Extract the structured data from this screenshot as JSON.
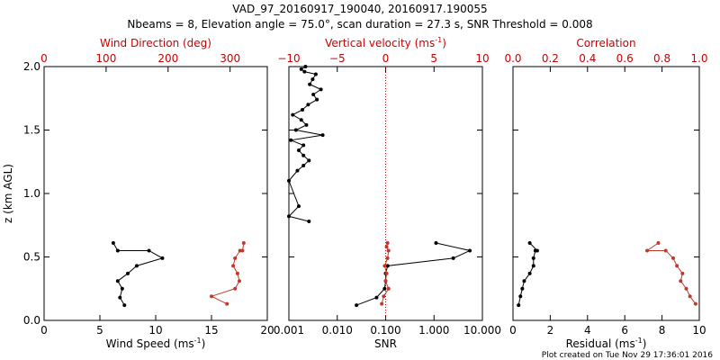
{
  "header": {
    "line1": "VAD_97_20160917_190040, 20160917.190055",
    "line2": "Nbeams = 8, Elevation angle = 75.0°, scan duration = 27.3 s, SNR Threshold = 0.008"
  },
  "footer": "Plot created on Tue Nov 29 17:36:01 2016",
  "colors": {
    "axes": "#000000",
    "secondary": "#cc0000",
    "black_series": "#000000",
    "red_series": "#c0392b"
  },
  "chart_data": [
    {
      "type": "line",
      "panel": "wind",
      "ylabel": "z (km AGL)",
      "ylim": [
        0,
        2
      ],
      "yticks": [
        "0.0",
        "0.5",
        "1.0",
        "1.5",
        "2.0"
      ],
      "xlabel_bottom": "Wind Speed (ms",
      "xlabel_bottom_sup": "-1",
      "xlabel_bottom_end": ")",
      "xlim_bottom": [
        0,
        20
      ],
      "xticks_bottom": [
        "0",
        "5",
        "10",
        "15",
        "20"
      ],
      "xlabel_top": "Wind Direction (deg)",
      "xlim_top": [
        0,
        360
      ],
      "xticks_top": [
        "0",
        "100",
        "200",
        "300"
      ],
      "series": [
        {
          "color": "black",
          "axis": "bottom",
          "x": [
            7.2,
            6.8,
            7.0,
            6.6,
            7.5,
            8.3,
            10.6,
            9.4,
            6.6,
            6.2
          ],
          "y": [
            0.12,
            0.18,
            0.25,
            0.31,
            0.37,
            0.43,
            0.49,
            0.55,
            0.55,
            0.61
          ]
        },
        {
          "color": "red",
          "axis": "top",
          "x": [
            295,
            270,
            308,
            315,
            312,
            305,
            308,
            316,
            320,
            322
          ],
          "y": [
            0.13,
            0.19,
            0.25,
            0.31,
            0.37,
            0.43,
            0.49,
            0.55,
            0.55,
            0.61
          ]
        }
      ]
    },
    {
      "type": "line",
      "panel": "snr",
      "xlabel_bottom": "SNR",
      "xscale_bottom": "log",
      "xlim_bottom": [
        0.001,
        10
      ],
      "xticks_bottom": [
        "0.001",
        "0.010",
        "0.100",
        "1.000",
        "10.000"
      ],
      "xlabel_top": "Vertical velocity (ms",
      "xlabel_top_sup": "-1",
      "xlabel_top_end": ")",
      "xlim_top": [
        -10,
        10
      ],
      "xticks_top": [
        "−10",
        "−5",
        "0",
        "5",
        "10"
      ],
      "zero_line_value": 0,
      "series": [
        {
          "color": "black",
          "axis": "bottom",
          "x": [
            0.0022,
            0.0018,
            0.0021,
            0.0036,
            0.0031,
            0.0027,
            0.0046,
            0.0032,
            0.0038,
            0.0025,
            0.0019,
            0.0012,
            0.0018,
            0.0023,
            0.0014,
            0.005,
            0.0011,
            0.002,
            0.0016,
            0.002,
            0.0026,
            0.002,
            0.0015,
            0.001,
            0.0016,
            0.001,
            0.0026
          ],
          "y": [
            2.0,
            1.98,
            1.96,
            1.94,
            1.9,
            1.86,
            1.82,
            1.78,
            1.74,
            1.7,
            1.66,
            1.62,
            1.58,
            1.54,
            1.5,
            1.46,
            1.42,
            1.38,
            1.34,
            1.3,
            1.26,
            1.22,
            1.18,
            1.1,
            0.9,
            0.82,
            0.78
          ]
        },
        {
          "color": "black",
          "axis": "bottom",
          "x": [
            0.025,
            0.065,
            0.095,
            0.1,
            0.1,
            0.11,
            2.5,
            5.5,
            1.1
          ],
          "y": [
            0.12,
            0.18,
            0.25,
            0.31,
            0.37,
            0.43,
            0.49,
            0.55,
            0.61
          ]
        },
        {
          "color": "red",
          "axis": "top",
          "x": [
            -0.4,
            -0.2,
            0.3,
            0.0,
            0.1,
            -0.1,
            0.2,
            0.3,
            0.1,
            0.2
          ],
          "y": [
            0.13,
            0.19,
            0.25,
            0.31,
            0.37,
            0.43,
            0.49,
            0.55,
            0.58,
            0.61
          ]
        }
      ]
    },
    {
      "type": "line",
      "panel": "residual",
      "xlabel_bottom": "Residual (ms",
      "xlabel_bottom_sup": "-1",
      "xlabel_bottom_end": ")",
      "xlim_bottom": [
        0,
        10
      ],
      "xticks_bottom": [
        "0",
        "2",
        "4",
        "6",
        "8",
        "10"
      ],
      "xlabel_top": "Correlation",
      "xlim_top": [
        0,
        1
      ],
      "xticks_top": [
        "0.0",
        "0.2",
        "0.4",
        "0.6",
        "0.8",
        "1.0"
      ],
      "series": [
        {
          "color": "black",
          "axis": "bottom",
          "x": [
            0.3,
            0.4,
            0.5,
            0.6,
            0.9,
            1.1,
            1.1,
            1.2,
            1.3,
            0.9
          ],
          "y": [
            0.12,
            0.19,
            0.25,
            0.31,
            0.37,
            0.43,
            0.49,
            0.55,
            0.55,
            0.61
          ]
        },
        {
          "color": "red",
          "axis": "top",
          "x": [
            0.98,
            0.95,
            0.93,
            0.9,
            0.91,
            0.88,
            0.86,
            0.82,
            0.72,
            0.78
          ],
          "y": [
            0.13,
            0.19,
            0.25,
            0.31,
            0.37,
            0.43,
            0.49,
            0.55,
            0.55,
            0.61
          ]
        }
      ]
    }
  ]
}
